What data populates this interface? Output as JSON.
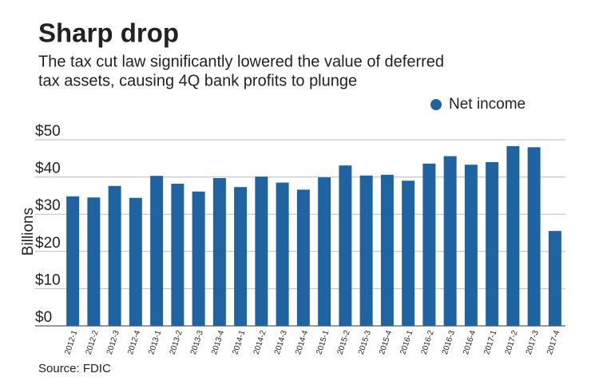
{
  "chart_data": {
    "type": "bar",
    "title": "Sharp drop",
    "subtitle": [
      "The tax cut law significantly lowered the value of deferred",
      "tax assets, causing 4Q bank profits to plunge"
    ],
    "y_label": "Billions",
    "source": "Source: FDIC",
    "categories": [
      "2012-1",
      "2012-2",
      "2012-3",
      "2012-4",
      "2013-1",
      "2013-2",
      "2013-3",
      "2013-4",
      "2014-1",
      "2014-2",
      "2014-3",
      "2014-4",
      "2015-1",
      "2015-2",
      "2015-3",
      "2015-4",
      "2016-1",
      "2016-2",
      "2016-3",
      "2016-4",
      "2017-1",
      "2017-2",
      "2017-3",
      "2017-4"
    ],
    "series": [
      {
        "name": "Net income",
        "color": "#1f64a0",
        "values": [
          34.8,
          34.5,
          37.6,
          34.4,
          40.3,
          38.2,
          36.1,
          39.7,
          37.3,
          40.1,
          38.5,
          36.6,
          39.9,
          43.1,
          40.4,
          40.6,
          39.0,
          43.6,
          45.6,
          43.3,
          44.0,
          48.3,
          48.0,
          25.5
        ]
      }
    ],
    "ylim": [
      0,
      50
    ],
    "yticks": [
      {
        "value": 0,
        "label": "$0"
      },
      {
        "value": 10,
        "label": "$10"
      },
      {
        "value": 20,
        "label": "$20"
      },
      {
        "value": 30,
        "label": "$30"
      },
      {
        "value": 40,
        "label": "$40"
      },
      {
        "value": 50,
        "label": "$50"
      }
    ],
    "grid": true
  }
}
